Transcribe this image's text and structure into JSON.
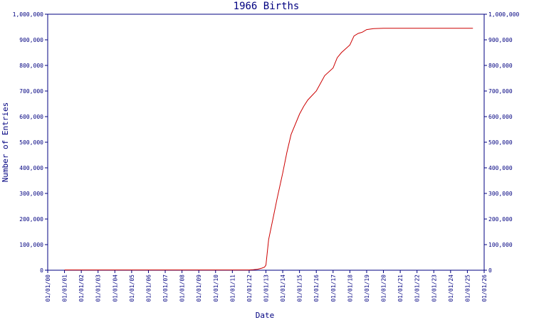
{
  "chart_data": {
    "type": "line",
    "title": "1966 Births",
    "xlabel": "Date",
    "ylabel": "Number of Entries",
    "x_ticks": [
      "01/01/00",
      "01/01/01",
      "01/01/02",
      "01/01/03",
      "01/01/04",
      "01/01/05",
      "01/01/06",
      "01/01/07",
      "01/01/08",
      "01/01/09",
      "01/01/10",
      "01/01/11",
      "01/01/12",
      "01/01/13",
      "01/01/14",
      "01/01/15",
      "01/01/16",
      "01/01/17",
      "01/01/18",
      "01/01/19",
      "01/01/20",
      "01/01/21",
      "01/01/22",
      "01/01/23",
      "01/01/24",
      "01/01/25",
      "01/01/26"
    ],
    "y_ticks": [
      "0",
      "100,000",
      "200,000",
      "300,000",
      "400,000",
      "500,000",
      "600,000",
      "700,000",
      "800,000",
      "900,000",
      "1,000,000"
    ],
    "ylim": [
      0,
      1000000
    ],
    "xlim": [
      "2000-01-01",
      "2026-01-01"
    ],
    "grid": false,
    "colors": {
      "axis": "#000080",
      "line": "#cc0000"
    },
    "series": [
      {
        "x": [
          "2001-01-01",
          "2012-01-01",
          "2012-04-01",
          "2012-07-01",
          "2012-10-01",
          "2012-12-01",
          "2013-01-01",
          "2013-03-01",
          "2013-06-01",
          "2013-09-01",
          "2014-01-01",
          "2014-04-01",
          "2014-07-01",
          "2015-01-01",
          "2015-04-01",
          "2015-07-01",
          "2016-01-01",
          "2016-04-01",
          "2016-07-01",
          "2017-01-01",
          "2017-04-01",
          "2017-07-01",
          "2018-01-01",
          "2018-04-01",
          "2018-07-01",
          "2018-10-01",
          "2019-01-01",
          "2019-06-01",
          "2020-01-01",
          "2022-01-01",
          "2024-01-01",
          "2025-05-01"
        ],
        "y": [
          1000,
          1000,
          2000,
          4000,
          8000,
          12000,
          20000,
          120000,
          200000,
          280000,
          380000,
          460000,
          530000,
          610000,
          640000,
          665000,
          700000,
          730000,
          760000,
          790000,
          830000,
          850000,
          880000,
          915000,
          925000,
          930000,
          940000,
          944000,
          945000,
          945000,
          945000,
          945000
        ]
      }
    ]
  }
}
